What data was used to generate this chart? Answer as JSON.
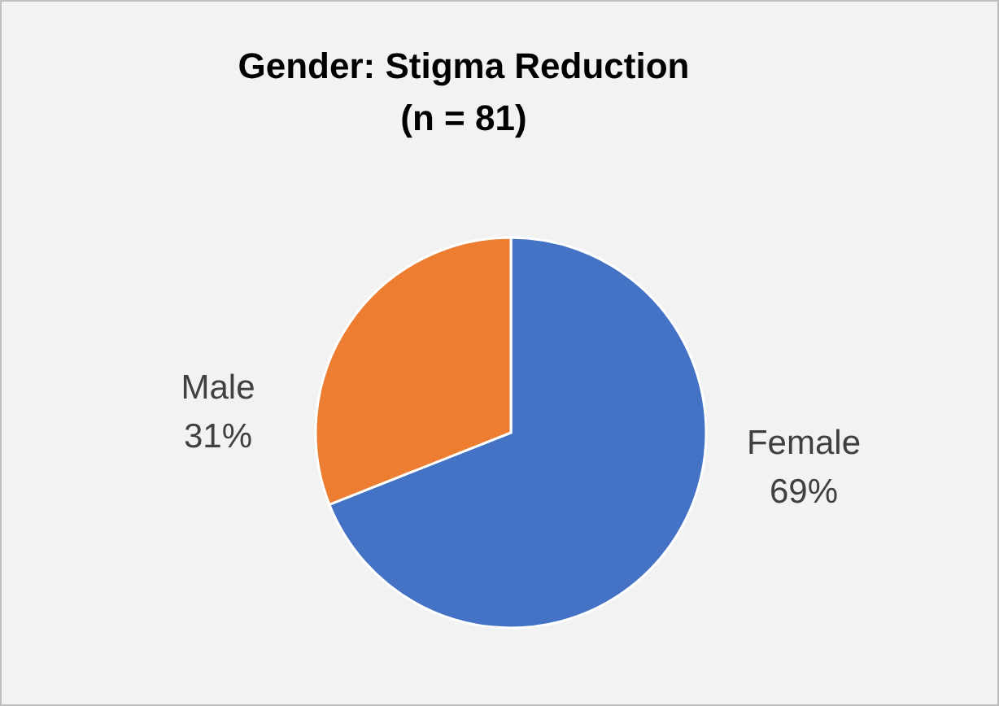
{
  "chart_data": {
    "type": "pie",
    "title": "Gender: Stigma Reduction",
    "subtitle": "(n = 81)",
    "categories": [
      "Female",
      "Male"
    ],
    "values": [
      69,
      31
    ],
    "value_labels": [
      "69%",
      "31%"
    ],
    "colors": [
      "#4472c4",
      "#ed7d31"
    ]
  }
}
